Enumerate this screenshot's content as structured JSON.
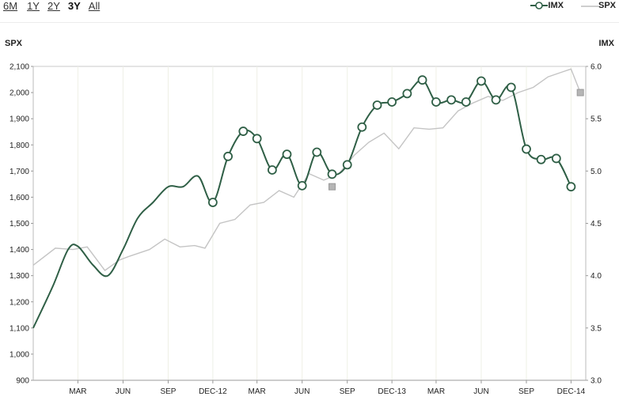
{
  "toolbar": {
    "ranges": [
      {
        "label": "6M",
        "active": false
      },
      {
        "label": "1Y",
        "active": false
      },
      {
        "label": "2Y",
        "active": false
      },
      {
        "label": "3Y",
        "active": true
      },
      {
        "label": "All",
        "active": false
      }
    ]
  },
  "legend": {
    "items": [
      {
        "label": "IMX",
        "color": "#2f5f46"
      },
      {
        "label": "SPX",
        "color": "#bdbdbd"
      }
    ]
  },
  "chart_data": {
    "type": "line",
    "left_axis": {
      "title": "SPX",
      "range": [
        900,
        2100
      ],
      "ticks": [
        "900",
        "1,000",
        "1,100",
        "1,200",
        "1,300",
        "1,400",
        "1,500",
        "1,600",
        "1,700",
        "1,800",
        "1,900",
        "2,000",
        "2,100"
      ]
    },
    "right_axis": {
      "title": "IMX",
      "range": [
        3.0,
        6.0
      ],
      "ticks": [
        "3.0",
        "3.5",
        "4.0",
        "4.5",
        "5.0",
        "5.5",
        "6.0"
      ]
    },
    "x_range": [
      "2011-12-01",
      "2014-12-31"
    ],
    "x_ticks": [
      {
        "date": "2012-03-01",
        "label": "MAR"
      },
      {
        "date": "2012-06-01",
        "label": "JUN"
      },
      {
        "date": "2012-09-01",
        "label": "SEP"
      },
      {
        "date": "2012-12-01",
        "label": "DEC-12"
      },
      {
        "date": "2013-03-01",
        "label": "MAR"
      },
      {
        "date": "2013-06-01",
        "label": "JUN"
      },
      {
        "date": "2013-09-01",
        "label": "SEP"
      },
      {
        "date": "2013-12-01",
        "label": "DEC-13"
      },
      {
        "date": "2014-03-01",
        "label": "MAR"
      },
      {
        "date": "2014-06-01",
        "label": "JUN"
      },
      {
        "date": "2014-09-01",
        "label": "SEP"
      },
      {
        "date": "2014-12-01",
        "label": "DEC-14"
      }
    ],
    "grid": true,
    "legend_position": "top-right",
    "series": [
      {
        "name": "SPX",
        "axis": "left",
        "color": "#c4c4c4",
        "points": [
          [
            "2011-12-01",
            1340
          ],
          [
            "2012-01-15",
            1405
          ],
          [
            "2012-02-20",
            1400
          ],
          [
            "2012-03-20",
            1410
          ],
          [
            "2012-04-25",
            1320
          ],
          [
            "2012-05-25",
            1360
          ],
          [
            "2012-06-15",
            1375
          ],
          [
            "2012-07-25",
            1400
          ],
          [
            "2012-08-25",
            1440
          ],
          [
            "2012-09-25",
            1410
          ],
          [
            "2012-10-25",
            1415
          ],
          [
            "2012-11-15",
            1405
          ],
          [
            "2012-12-15",
            1500
          ],
          [
            "2013-01-15",
            1515
          ],
          [
            "2013-02-15",
            1570
          ],
          [
            "2013-03-15",
            1580
          ],
          [
            "2013-04-15",
            1625
          ],
          [
            "2013-05-15",
            1600
          ],
          [
            "2013-06-15",
            1690
          ],
          [
            "2013-07-15",
            1665
          ],
          [
            "2013-08-15",
            1690
          ],
          [
            "2013-09-15",
            1760
          ],
          [
            "2013-10-15",
            1810
          ],
          [
            "2013-11-15",
            1845
          ],
          [
            "2013-12-15",
            1785
          ],
          [
            "2014-01-15",
            1865
          ],
          [
            "2014-02-15",
            1860
          ],
          [
            "2014-03-15",
            1865
          ],
          [
            "2014-04-15",
            1930
          ],
          [
            "2014-05-15",
            1960
          ],
          [
            "2014-06-15",
            1985
          ],
          [
            "2014-07-15",
            1970
          ],
          [
            "2014-08-15",
            2000
          ],
          [
            "2014-09-15",
            2020
          ],
          [
            "2014-10-15",
            2060
          ],
          [
            "2014-11-15",
            2080
          ],
          [
            "2014-12-01",
            2090
          ],
          [
            "2014-12-20",
            2000
          ]
        ],
        "markers": [
          [
            "2013-08-01",
            1640
          ],
          [
            "2014-12-20",
            2000
          ]
        ]
      },
      {
        "name": "IMX",
        "axis": "right",
        "color": "#2f5f46",
        "points": [
          [
            "2011-12-01",
            3.5
          ],
          [
            "2012-01-10",
            3.9
          ],
          [
            "2012-02-10",
            4.25
          ],
          [
            "2012-03-01",
            4.28
          ],
          [
            "2012-04-01",
            4.1
          ],
          [
            "2012-05-01",
            4.0
          ],
          [
            "2012-06-01",
            4.25
          ],
          [
            "2012-07-01",
            4.55
          ],
          [
            "2012-08-01",
            4.7
          ],
          [
            "2012-09-01",
            4.85
          ],
          [
            "2012-10-01",
            4.85
          ],
          [
            "2012-11-01",
            4.95
          ],
          [
            "2012-12-01",
            4.7
          ],
          [
            "2013-01-01",
            5.14
          ],
          [
            "2013-02-01",
            5.38
          ],
          [
            "2013-03-01",
            5.31
          ],
          [
            "2013-04-01",
            5.01
          ],
          [
            "2013-05-01",
            5.16
          ],
          [
            "2013-06-01",
            4.86
          ],
          [
            "2013-07-01",
            5.18
          ],
          [
            "2013-08-01",
            4.97
          ],
          [
            "2013-09-01",
            5.06
          ],
          [
            "2013-10-01",
            5.42
          ],
          [
            "2013-11-01",
            5.63
          ],
          [
            "2013-12-01",
            5.66
          ],
          [
            "2014-01-01",
            5.74
          ],
          [
            "2014-02-01",
            5.87
          ],
          [
            "2014-03-01",
            5.66
          ],
          [
            "2014-04-01",
            5.68
          ],
          [
            "2014-05-01",
            5.66
          ],
          [
            "2014-06-01",
            5.86
          ],
          [
            "2014-07-01",
            5.68
          ],
          [
            "2014-08-01",
            5.8
          ],
          [
            "2014-09-01",
            5.21
          ],
          [
            "2014-10-01",
            5.11
          ],
          [
            "2014-11-01",
            5.12
          ],
          [
            "2014-12-01",
            4.85
          ]
        ]
      }
    ]
  }
}
